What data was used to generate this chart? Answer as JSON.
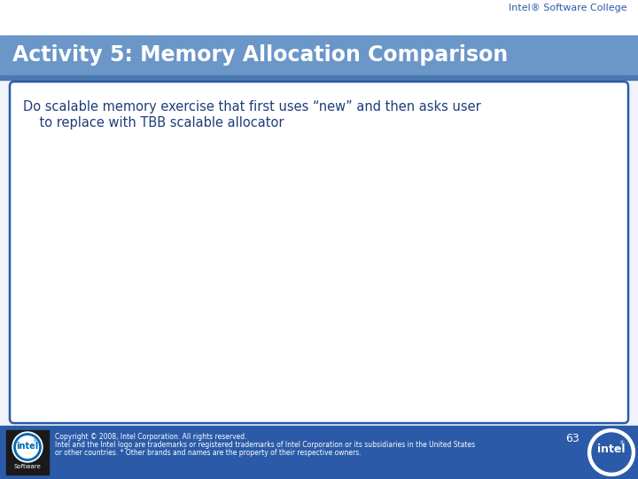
{
  "header_text": "Intel® Software College",
  "title_text": "Activity 5: Memory Allocation Comparison",
  "title_bg_color": "#6B96C8",
  "title_text_color": "#FFFFFF",
  "slide_bg_color": "#F0F4FA",
  "body_text_line1": "Do scalable memory exercise that first uses “new” and then asks user",
  "body_text_line2": "    to replace with TBB scalable allocator",
  "body_text_color": "#1F3D7A",
  "box_border_color": "#2B5BA8",
  "footer_bg_color": "#2B5BA8",
  "footer_text_color": "#FFFFFF",
  "footer_copyright_line1": "Copyright © 2008, Intel Corporation. All rights reserved.",
  "footer_copyright_line2": "Intel and the Intel logo are trademarks or registered trademarks of Intel Corporation or its subsidiaries in the United States",
  "footer_copyright_line3": "or other countries. * Other brands and names are the property of their respective owners.",
  "page_number": "63",
  "header_text_color": "#2B5BA8",
  "logo_box_color": "#1A1A1A",
  "logo_text_color": "#FFFFFF",
  "intel_blue": "#0068B5"
}
